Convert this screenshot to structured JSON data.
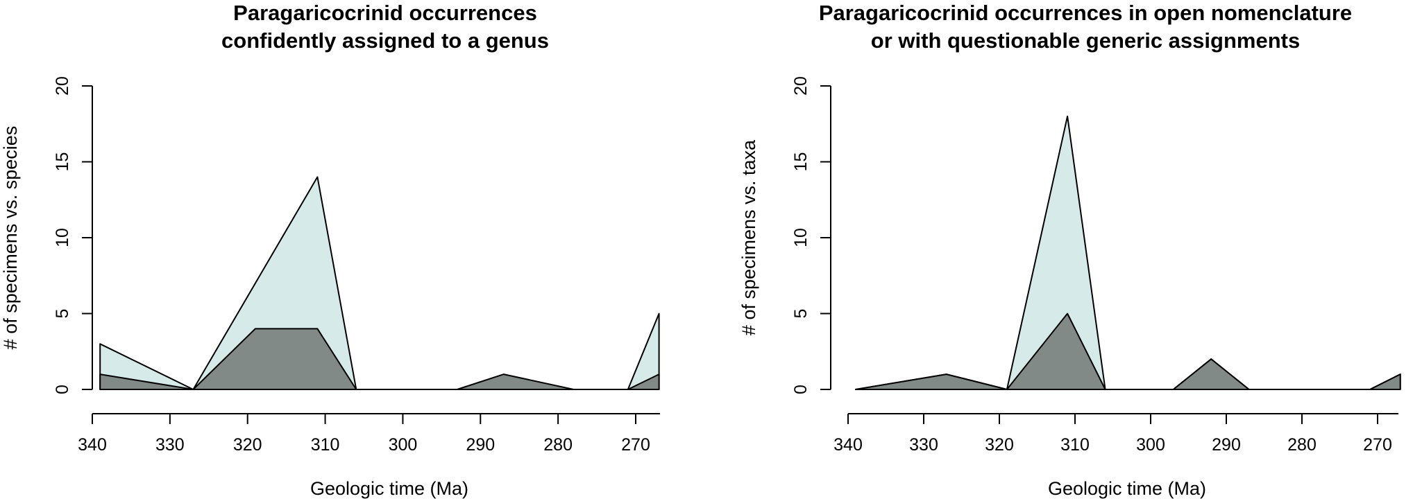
{
  "chart_data": [
    {
      "type": "area",
      "title": [
        "Paragaricocrinid occurrences",
        "confidently assigned to a genus"
      ],
      "xlabel": "Geologic time (Ma)",
      "ylabel": "# of specimens vs. species",
      "xlim": [
        340,
        266
      ],
      "ylim": [
        0,
        20
      ],
      "xticks": [
        340,
        330,
        320,
        310,
        300,
        290,
        280,
        270
      ],
      "yticks": [
        0,
        5,
        10,
        15,
        20
      ],
      "series": [
        {
          "color": "#d7eaea",
          "x": [
            339,
            327,
            319,
            311,
            306,
            293,
            287,
            278,
            271,
            267
          ],
          "values": [
            3,
            0,
            7,
            14,
            0,
            0,
            0,
            0,
            0,
            5
          ]
        },
        {
          "color": "#828a88",
          "x": [
            339,
            327,
            319,
            311,
            306,
            293,
            287,
            278,
            271,
            267
          ],
          "values": [
            1,
            0,
            4,
            4,
            0,
            0,
            1,
            0,
            0,
            1
          ]
        }
      ]
    },
    {
      "type": "area",
      "title": [
        "Paragaricocrinid occurrences in open nomenclature",
        "or with questionable generic assignments"
      ],
      "xlabel": "Geologic time (Ma)",
      "ylabel": "# of specimens vs. taxa",
      "xlim": [
        340,
        266
      ],
      "ylim": [
        0,
        20
      ],
      "xticks": [
        340,
        330,
        320,
        310,
        300,
        290,
        280,
        270
      ],
      "yticks": [
        0,
        5,
        10,
        15,
        20
      ],
      "series": [
        {
          "color": "#d7eaea",
          "x": [
            339,
            327,
            319,
            311,
            306,
            297,
            292,
            287,
            271,
            267
          ],
          "values": [
            0,
            1,
            0,
            18,
            0,
            0,
            2,
            0,
            0,
            1
          ]
        },
        {
          "color": "#828a88",
          "x": [
            339,
            327,
            319,
            311,
            306,
            297,
            292,
            287,
            271,
            267
          ],
          "values": [
            0,
            1,
            0,
            5,
            0,
            0,
            2,
            0,
            0,
            1
          ]
        }
      ]
    }
  ]
}
